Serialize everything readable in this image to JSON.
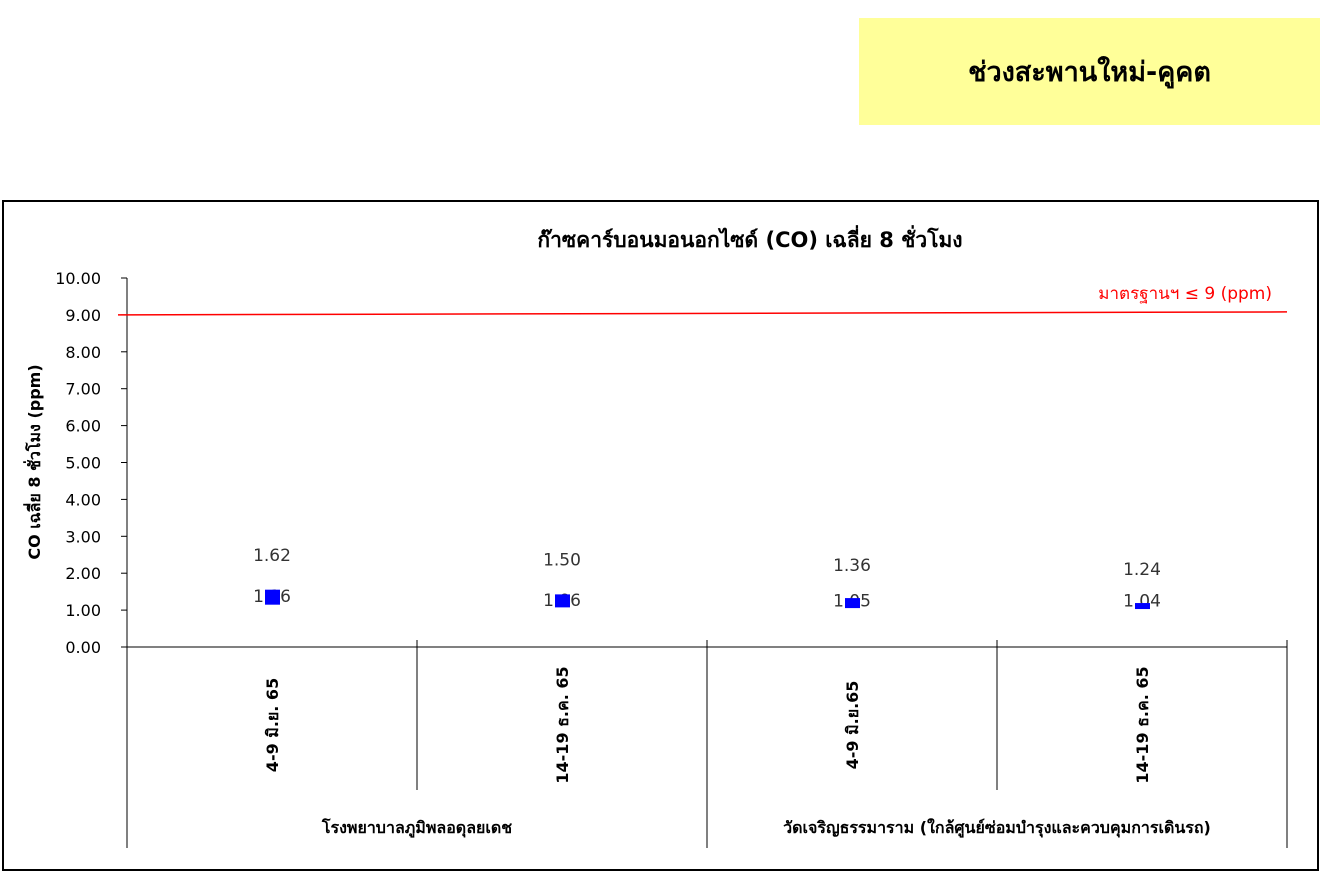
{
  "banner": {
    "title": "ช่วงสะพานใหม่-คูคต",
    "color": "#ffff99"
  },
  "chart_data": {
    "type": "high-low",
    "title": "ก๊าซคาร์บอนมอนอกไซด์ (CO) เฉลี่ย 8 ชั่วโมง",
    "ylabel": "CO เฉลี่ย 8 ชั่วโมง (ppm)",
    "xlabel": "",
    "ylim": [
      0,
      10
    ],
    "yticks": [
      "0.00",
      "1.00",
      "2.00",
      "3.00",
      "4.00",
      "5.00",
      "6.00",
      "7.00",
      "8.00",
      "9.00",
      "10.00"
    ],
    "groups": [
      {
        "label": "โรงพยาบาลภูมิพลอดุลยเดช",
        "categories": [
          "4-9 มิ.ย. 65",
          "14-19 ธ.ค. 65"
        ]
      },
      {
        "label": "วัดเจริญธรรมาราม (ใกล้ศูนย์ซ่อมบำรุงและควบคุมการเดินรถ)",
        "categories": [
          "4-9 มิ.ย.65",
          "14-19 ธ.ค. 65"
        ]
      }
    ],
    "series": [
      {
        "role": "max",
        "values": [
          1.62,
          1.5,
          1.36,
          1.24
        ],
        "labels": [
          "1.62",
          "1.50",
          "1.36",
          "1.24"
        ]
      },
      {
        "role": "min",
        "values": [
          1.16,
          1.06,
          1.05,
          1.04
        ],
        "labels": [
          "1.16",
          "1.06",
          "1.05",
          "1.04"
        ]
      },
      {
        "role": "marker",
        "values": [
          1.35,
          1.25,
          1.19,
          1.11
        ],
        "color": "#0000ff"
      }
    ],
    "reference_line": {
      "value": 9,
      "label": "มาตรฐานฯ ≤ 9 (ppm)",
      "color": "#ff0000"
    },
    "grid": false
  }
}
